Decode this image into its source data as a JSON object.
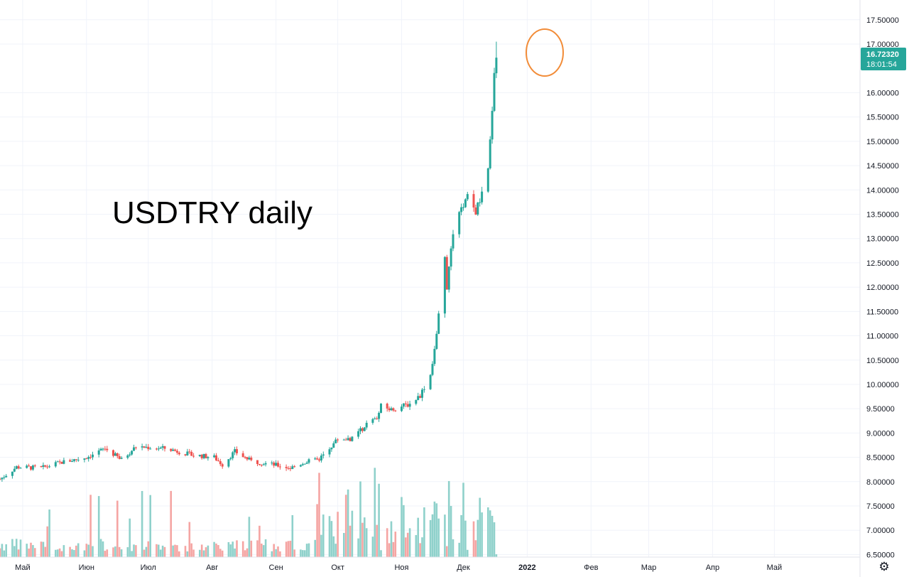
{
  "chart_data": {
    "type": "candlestick",
    "symbol": "USDTRY",
    "timeframe": "daily",
    "annotation": "USDTRY daily",
    "y_axis": {
      "ticks": [
        "6.50000",
        "7.00000",
        "7.50000",
        "8.00000",
        "8.50000",
        "9.00000",
        "9.50000",
        "10.00000",
        "10.50000",
        "11.00000",
        "11.50000",
        "12.00000",
        "12.50000",
        "13.00000",
        "13.50000",
        "14.00000",
        "14.50000",
        "15.00000",
        "15.50000",
        "16.00000",
        "17.00000",
        "17.50000"
      ],
      "ylim": [
        6.35,
        17.75
      ]
    },
    "x_axis": {
      "ticks": [
        "Май",
        "Июн",
        "Июл",
        "Авг",
        "Сен",
        "Окт",
        "Ноя",
        "Дек",
        "2022",
        "Фев",
        "Мар",
        "Апр",
        "Май"
      ]
    },
    "last_price": "16.72320",
    "countdown": "18:01:54",
    "colors": {
      "up": "#26a69a",
      "down": "#ef5350",
      "up_volume": "#8fd1cb",
      "down_volume": "#f5a5a3",
      "grid": "#f0f3fa",
      "highlight_circle": "#f28c38"
    },
    "highlight": {
      "description": "circle around latest candles",
      "price_center": 16.85
    },
    "anchors": [
      [
        "2021-04-20",
        8.05
      ],
      [
        "2021-04-28",
        8.3
      ],
      [
        "2021-05-10",
        8.28
      ],
      [
        "2021-05-20",
        8.4
      ],
      [
        "2021-06-01",
        8.5
      ],
      [
        "2021-06-10",
        8.68
      ],
      [
        "2021-06-18",
        8.45
      ],
      [
        "2021-06-25",
        8.72
      ],
      [
        "2021-07-10",
        8.68
      ],
      [
        "2021-07-22",
        8.55
      ],
      [
        "2021-08-02",
        8.5
      ],
      [
        "2021-08-06",
        8.35
      ],
      [
        "2021-08-12",
        8.62
      ],
      [
        "2021-08-20",
        8.42
      ],
      [
        "2021-09-01",
        8.34
      ],
      [
        "2021-09-08",
        8.28
      ],
      [
        "2021-09-15",
        8.4
      ],
      [
        "2021-09-22",
        8.45
      ],
      [
        "2021-10-01",
        8.88
      ],
      [
        "2021-10-08",
        8.88
      ],
      [
        "2021-10-15",
        9.18
      ],
      [
        "2021-10-20",
        9.3
      ],
      [
        "2021-10-22",
        9.55
      ],
      [
        "2021-10-27",
        9.48
      ],
      [
        "2021-11-05",
        9.6
      ],
      [
        "2021-11-10",
        9.78
      ],
      [
        "2021-11-15",
        10.2
      ],
      [
        "2021-11-18",
        11.0
      ],
      [
        "2021-11-22",
        12.6
      ],
      [
        "2021-11-23",
        12.0
      ],
      [
        "2021-11-26",
        13.1
      ],
      [
        "2021-11-30",
        13.6
      ],
      [
        "2021-12-03",
        13.85
      ],
      [
        "2021-12-07",
        13.55
      ],
      [
        "2021-12-10",
        13.9
      ],
      [
        "2021-12-13",
        14.4
      ],
      [
        "2021-12-14",
        15.0
      ],
      [
        "2021-12-15",
        15.7
      ],
      [
        "2021-12-16",
        16.45
      ],
      [
        "2021-12-17",
        16.72
      ]
    ]
  }
}
